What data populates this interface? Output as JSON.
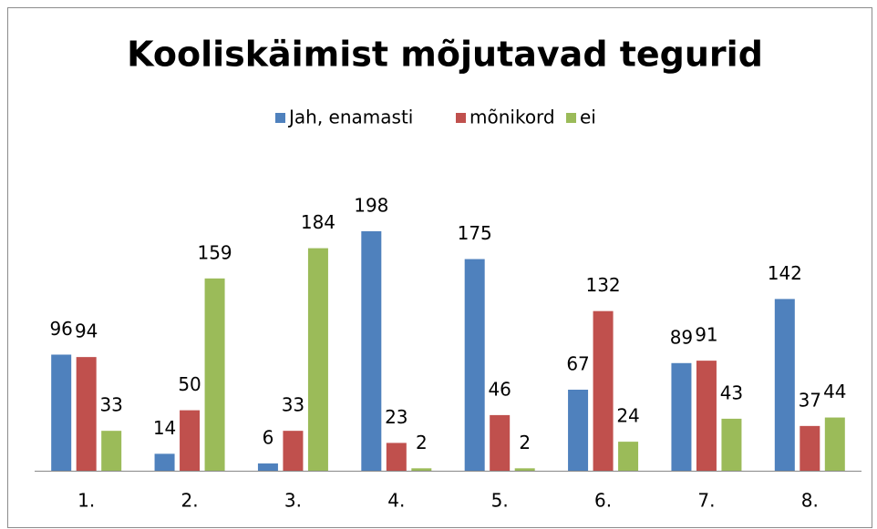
{
  "chart_data": {
    "type": "bar",
    "title": "Kooliskäimist mõjutavad tegurid",
    "categories": [
      "1.",
      "2.",
      "3.",
      "4.",
      "5.",
      "6.",
      "7.",
      "8."
    ],
    "series": [
      {
        "name": "Jah, enamasti",
        "color": "#4f81bd",
        "values": [
          96,
          14,
          6,
          198,
          175,
          67,
          89,
          142
        ]
      },
      {
        "name": "mõnikord",
        "color": "#c0504d",
        "values": [
          94,
          50,
          33,
          23,
          46,
          132,
          91,
          37
        ]
      },
      {
        "name": "ei",
        "color": "#9bbb59",
        "values": [
          33,
          159,
          184,
          2,
          2,
          24,
          43,
          44
        ]
      }
    ],
    "legend": "top"
  }
}
